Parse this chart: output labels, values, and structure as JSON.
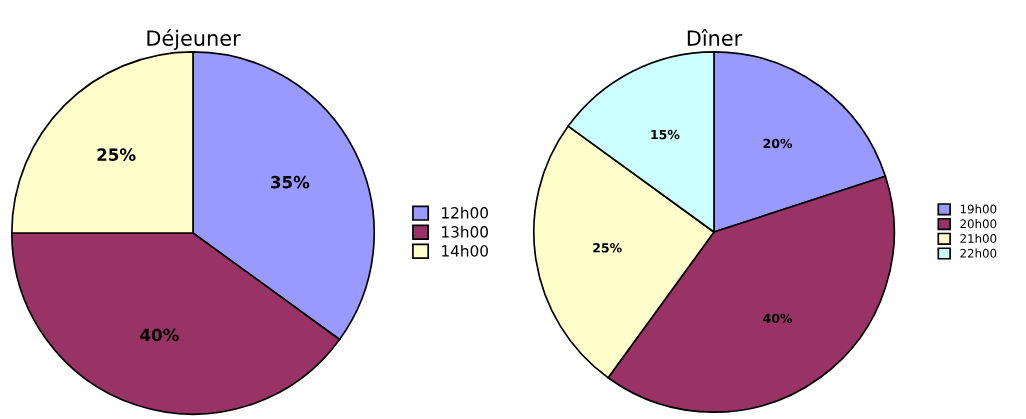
{
  "chart_data": [
    {
      "type": "pie",
      "title": "Déjeuner",
      "categories": [
        "12h00",
        "13h00",
        "14h00"
      ],
      "values": [
        35,
        40,
        25
      ],
      "value_labels": [
        "35%",
        "40%",
        "25%"
      ],
      "colors": [
        "#9999ff",
        "#993366",
        "#ffffcc"
      ],
      "legend": "right"
    },
    {
      "type": "pie",
      "title": "Dîner",
      "categories": [
        "19h00",
        "20h00",
        "21h00",
        "22h00"
      ],
      "values": [
        20,
        40,
        25,
        15
      ],
      "value_labels": [
        "20%",
        "40%",
        "25%",
        "15%"
      ],
      "colors": [
        "#9999ff",
        "#993366",
        "#ffffcc",
        "#ccffff"
      ],
      "legend": "right"
    }
  ]
}
